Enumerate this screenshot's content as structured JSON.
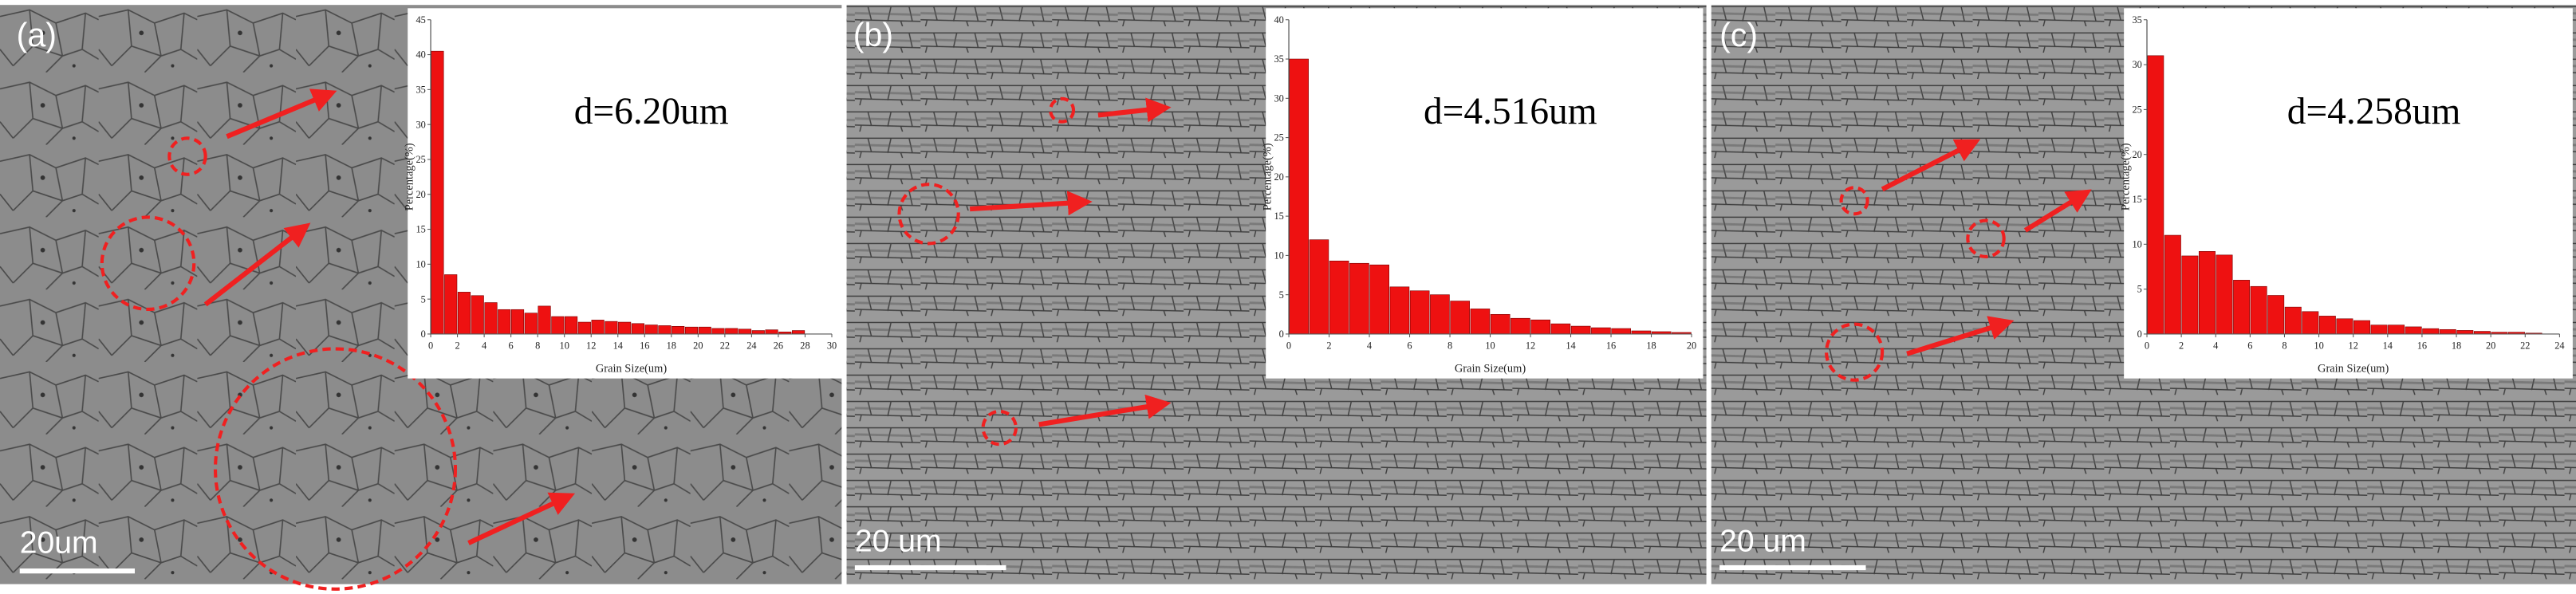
{
  "panels": [
    {
      "label": "(a)",
      "scale_bar": "20um"
    },
    {
      "label": "(b)",
      "scale_bar": "20 um"
    },
    {
      "label": "(c)",
      "scale_bar": "20 um"
    }
  ],
  "chart_data": [
    {
      "type": "histogram",
      "annotation": "d=6.20um",
      "xlabel": "Grain Size(um)",
      "ylabel": "Percentage(%)",
      "color": "#ee1111",
      "bins": [
        0,
        1,
        2,
        3,
        4,
        5,
        6,
        7,
        8,
        9,
        10,
        11,
        12,
        13,
        14,
        15,
        16,
        17,
        18,
        19,
        20,
        21,
        22,
        23,
        24,
        25,
        26,
        27,
        28
      ],
      "values": [
        40.5,
        8.5,
        6,
        5.5,
        4.5,
        3.5,
        3.5,
        3,
        4,
        2.5,
        2.5,
        1.7,
        2,
        1.8,
        1.7,
        1.5,
        1.3,
        1.2,
        1.1,
        1,
        1,
        0.8,
        0.8,
        0.7,
        0.5,
        0.6,
        0.3,
        0.5
      ],
      "xlim": [
        0,
        30
      ],
      "xticks": [
        0,
        2,
        4,
        6,
        8,
        10,
        12,
        14,
        16,
        18,
        20,
        22,
        24,
        26,
        28,
        30
      ],
      "ylim": [
        0,
        45
      ],
      "yticks": [
        0,
        5,
        10,
        15,
        20,
        25,
        30,
        35,
        40,
        45
      ]
    },
    {
      "type": "histogram",
      "annotation": "d=4.516um",
      "xlabel": "Grain Size(um)",
      "ylabel": "Percentage(%)",
      "color": "#ee1111",
      "bins": [
        0,
        1,
        2,
        3,
        4,
        5,
        6,
        7,
        8,
        9,
        10,
        11,
        12,
        13,
        14,
        15,
        16,
        17,
        18,
        19,
        20
      ],
      "values": [
        35,
        12,
        9.3,
        9,
        8.8,
        6,
        5.5,
        5,
        4.2,
        3.2,
        2.5,
        2,
        1.8,
        1.3,
        1,
        0.8,
        0.7,
        0.4,
        0.3,
        0.2
      ],
      "xlim": [
        0,
        20
      ],
      "xticks": [
        0,
        2,
        4,
        6,
        8,
        10,
        12,
        14,
        16,
        18,
        20
      ],
      "ylim": [
        0,
        40
      ],
      "yticks": [
        0,
        5,
        10,
        15,
        20,
        25,
        30,
        35,
        40
      ]
    },
    {
      "type": "histogram",
      "annotation": "d=4.258um",
      "xlabel": "Grain Size(um)",
      "ylabel": "Percentage(%)",
      "color": "#ee1111",
      "bins": [
        0,
        1,
        2,
        3,
        4,
        5,
        6,
        7,
        8,
        9,
        10,
        11,
        12,
        13,
        14,
        15,
        16,
        17,
        18,
        19,
        20,
        21,
        22,
        23
      ],
      "values": [
        31,
        11,
        8.7,
        9.2,
        8.8,
        6,
        5.3,
        4.3,
        3,
        2.5,
        2,
        1.7,
        1.5,
        1,
        1,
        0.8,
        0.6,
        0.5,
        0.4,
        0.3,
        0.2,
        0.2,
        0.1
      ],
      "xlim": [
        0,
        24
      ],
      "xticks": [
        0,
        2,
        4,
        6,
        8,
        10,
        12,
        14,
        16,
        18,
        20,
        22,
        24
      ],
      "ylim": [
        0,
        35
      ],
      "yticks": [
        0,
        5,
        10,
        15,
        20,
        25,
        30,
        35
      ]
    }
  ]
}
